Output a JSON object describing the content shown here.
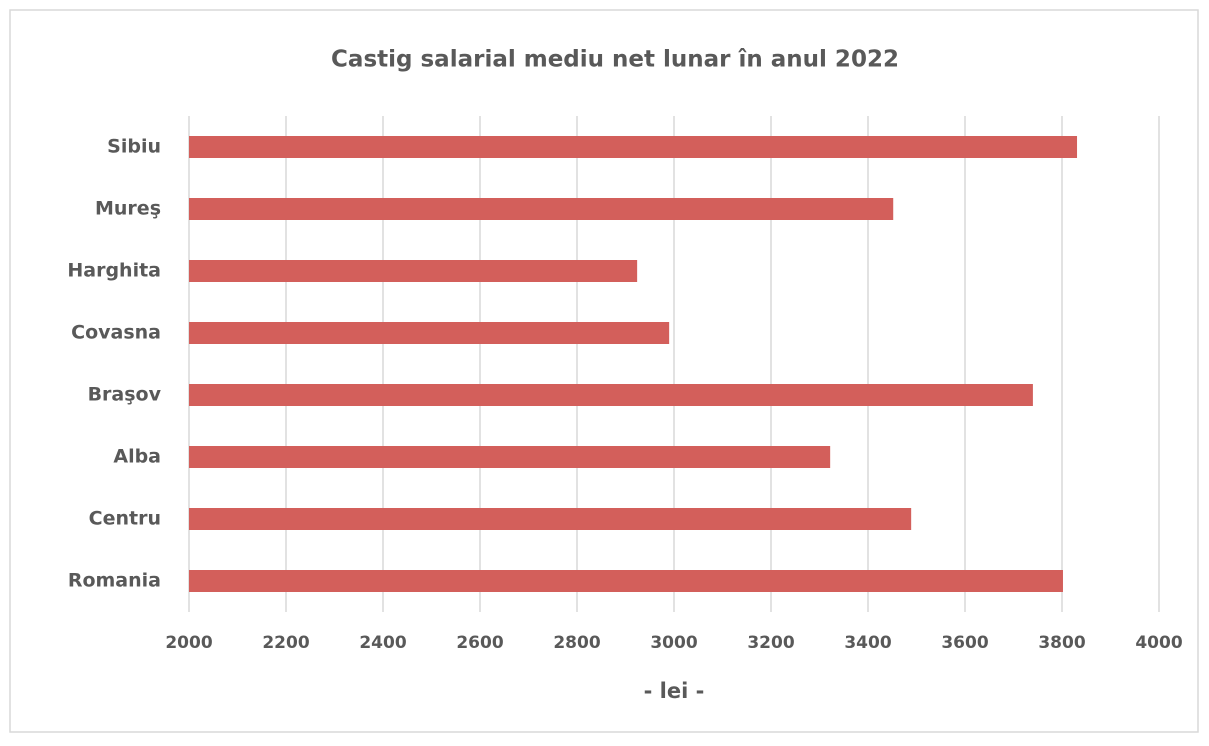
{
  "chart_data": {
    "type": "bar",
    "orientation": "horizontal",
    "title": "Castig salarial mediu net lunar în anul 2022",
    "x_label": "- lei -",
    "categories": [
      "Sibiu",
      "Mureş",
      "Harghita",
      "Covasna",
      "Braşov",
      "Alba",
      "Centru",
      "Romania"
    ],
    "values": [
      3831,
      3452,
      2924,
      2990,
      3740,
      3322,
      3489,
      3802
    ],
    "color": "#d35f5b",
    "xlim": [
      2000,
      4000
    ],
    "xticks": [
      2000,
      2200,
      2400,
      2600,
      2800,
      3000,
      3200,
      3400,
      3600,
      3800,
      4000
    ],
    "grid": true
  }
}
